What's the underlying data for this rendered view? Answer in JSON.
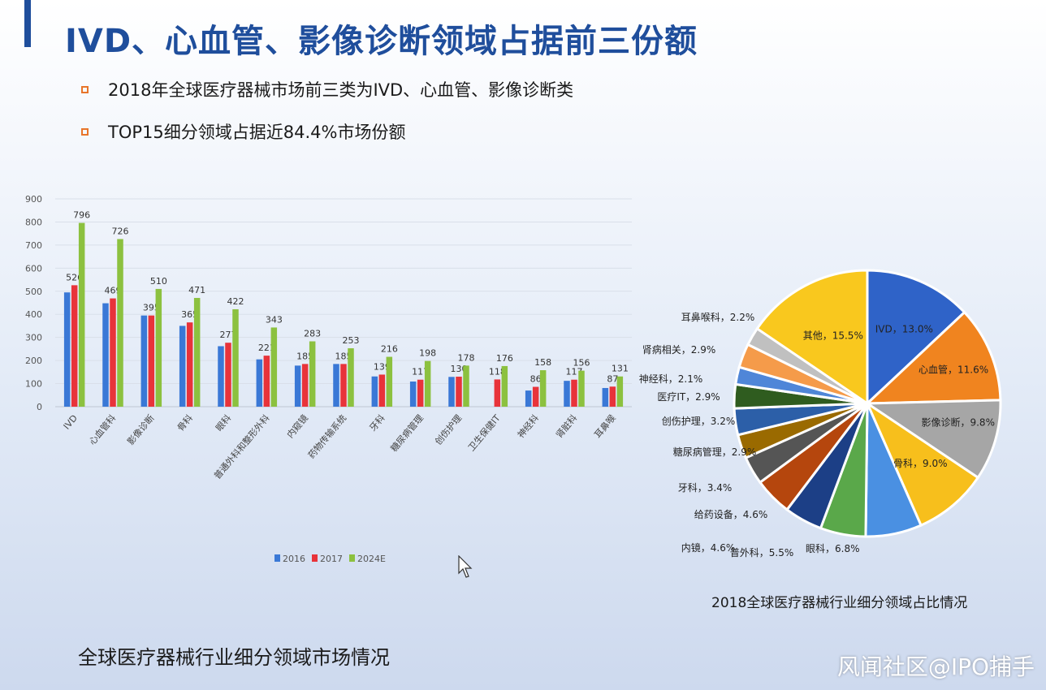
{
  "page": {
    "title": "IVD、心血管、影像诊断领域占据前三份额",
    "bullets": [
      "2018年全球医疗器械市场前三类为IVD、心血管、影像诊断类",
      "TOP15细分领域占据近84.4%市场份额"
    ],
    "bar_caption": "全球医疗器械行业细分领域市场情况",
    "pie_caption": "2018全球医疗器械行业细分领域占比情况",
    "watermark": "风闻社区@IPO捕手"
  },
  "colors": {
    "title": "#1f4e9c",
    "bullet": "#e8752a",
    "s2016": "#3a78d6",
    "s2017": "#e8333a",
    "s2024": "#8cc13f"
  },
  "chart_data": [
    {
      "type": "bar",
      "categories": [
        "IVD",
        "心血管科",
        "影像诊断",
        "骨科",
        "眼科",
        "普通外科和整形外科",
        "内窥镜",
        "药物传输系统",
        "牙科",
        "糖尿病管理",
        "创伤护理",
        "卫生保健IT",
        "神经科",
        "肾脏科",
        "耳鼻喉"
      ],
      "series": [
        {
          "name": "2016",
          "values": [
            495,
            448,
            395,
            350,
            262,
            205,
            178,
            185,
            131,
            109,
            129,
            null,
            70,
            112,
            81
          ]
        },
        {
          "name": "2017",
          "values": [
            526,
            469,
            395,
            365,
            277,
            221,
            185,
            185,
            139,
            117,
            130,
            118,
            86,
            117,
            87
          ]
        },
        {
          "name": "2024E",
          "values": [
            796,
            726,
            510,
            471,
            422,
            343,
            283,
            253,
            216,
            198,
            178,
            176,
            158,
            156,
            131
          ]
        }
      ],
      "data_labels": [
        [
          "",
          "",
          ""
        ],
        [
          "",
          "",
          ""
        ],
        [
          "",
          "",
          ""
        ],
        [
          "",
          "",
          ""
        ],
        [
          "",
          "",
          ""
        ],
        [
          "",
          "",
          ""
        ],
        [
          "",
          "",
          ""
        ],
        [
          "",
          "",
          ""
        ],
        [
          "",
          "",
          ""
        ],
        [
          "",
          "",
          ""
        ],
        [
          "",
          "",
          ""
        ],
        [
          "",
          "",
          ""
        ],
        [
          "",
          "",
          ""
        ],
        [
          "",
          "",
          ""
        ],
        [
          "",
          "",
          ""
        ]
      ],
      "label_text": [
        [
          "",
          "526",
          "796"
        ],
        [
          "",
          "469",
          "726"
        ],
        [
          "",
          "395",
          "510"
        ],
        [
          "",
          "365",
          "471"
        ],
        [
          "",
          "277",
          "422"
        ],
        [
          "",
          "221",
          "343"
        ],
        [
          "",
          "185",
          "283"
        ],
        [
          "",
          "185",
          "253"
        ],
        [
          "",
          "139",
          "216"
        ],
        [
          "",
          "117",
          "198"
        ],
        [
          "",
          "130",
          "178"
        ],
        [
          "",
          "118",
          "176"
        ],
        [
          "",
          "86",
          "158"
        ],
        [
          "",
          "117",
          "156"
        ],
        [
          "",
          "87",
          "131"
        ]
      ],
      "ylim": [
        0,
        900
      ],
      "yticks": [
        0,
        100,
        200,
        300,
        400,
        500,
        600,
        700,
        800,
        900
      ],
      "grid": true,
      "legend": "bottom-center",
      "legend_labels": [
        "2016",
        "2017",
        "2024E"
      ]
    },
    {
      "type": "pie",
      "labels": [
        "IVD",
        "心血管",
        "影像诊断",
        "骨科",
        "眼科",
        "普外科",
        "内镜",
        "给药设备",
        "牙科",
        "糖尿病管理",
        "创伤护理",
        "医疗IT",
        "神经科",
        "肾病相关",
        "耳鼻喉科",
        "其他"
      ],
      "values": [
        13.0,
        11.6,
        9.8,
        9.0,
        6.8,
        5.5,
        4.6,
        4.6,
        3.4,
        2.9,
        3.2,
        2.9,
        2.1,
        2.9,
        2.2,
        15.5
      ],
      "display_labels": [
        "IVD，13.0%",
        "心血管，11.6%",
        "影像诊断，9.8%",
        "骨科，9.0%",
        "眼科，6.8%",
        "普外科，5.5%",
        "内镜，4.6%",
        "给药设备，4.6%",
        "牙科，3.4%",
        "糖尿病管理，2.9%",
        "创伤护理，3.2%",
        "医疗IT，2.9%",
        "神经科，2.1%",
        "肾病相关，2.9%",
        "耳鼻喉科，2.2%",
        "其他，15.5%"
      ],
      "colors": [
        "#2f63c8",
        "#f0841f",
        "#a6a6a6",
        "#f7bf1c",
        "#4a90e2",
        "#5aa84a",
        "#1c3f86",
        "#b5460d",
        "#555555",
        "#9a6a00",
        "#2c5fa8",
        "#2f5c1f",
        "#4f86d8",
        "#f59b4a",
        "#c0c0c0",
        "#f9c81e"
      ],
      "legend": "none"
    }
  ]
}
